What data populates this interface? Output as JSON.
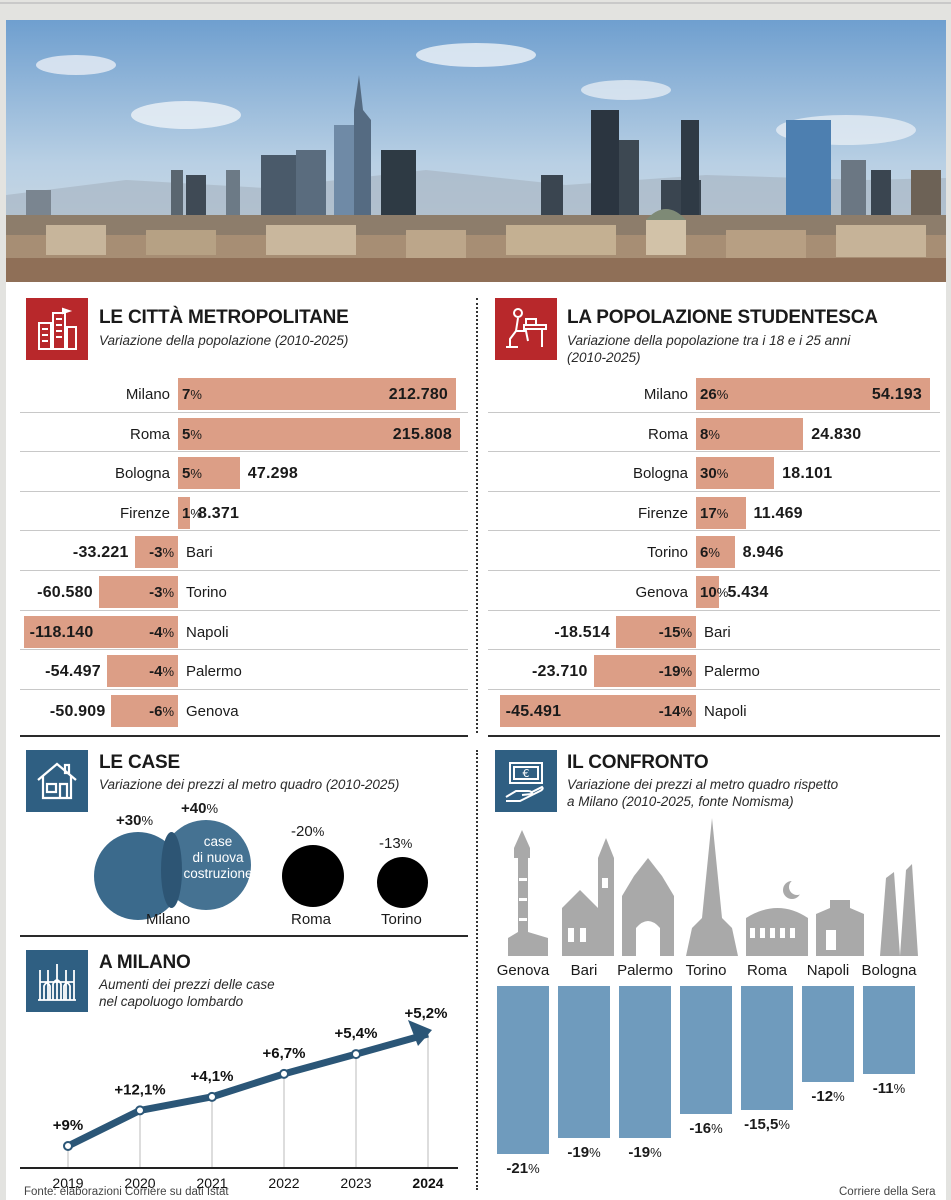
{
  "photo": {
    "alt_icon": "milan-skyline-photo"
  },
  "metro": {
    "title": "LE CITTÀ METROPOLITANE",
    "subtitle": "Variazione della popolazione (2010-2025)",
    "rows": [
      {
        "city": "Milano",
        "pct": "7",
        "value": "212.780"
      },
      {
        "city": "Roma",
        "pct": "5",
        "value": "215.808"
      },
      {
        "city": "Bologna",
        "pct": "5",
        "value": "47.298"
      },
      {
        "city": "Firenze",
        "pct": "1",
        "value": "8.371"
      },
      {
        "city": "Bari",
        "pct": "-3",
        "value": "-33.221"
      },
      {
        "city": "Torino",
        "pct": "-3",
        "value": "-60.580"
      },
      {
        "city": "Napoli",
        "pct": "-4",
        "value": "-118.140"
      },
      {
        "city": "Palermo",
        "pct": "-4",
        "value": "-54.497"
      },
      {
        "city": "Genova",
        "pct": "-6",
        "value": "-50.909"
      }
    ]
  },
  "students": {
    "title": "LA POPOLAZIONE STUDENTESCA",
    "subtitle_line1": "Variazione della popolazione tra i 18 e i 25 anni",
    "subtitle_line2": "(2010-2025)",
    "rows": [
      {
        "city": "Milano",
        "pct": "26",
        "value": "54.193"
      },
      {
        "city": "Roma",
        "pct": "8",
        "value": "24.830"
      },
      {
        "city": "Bologna",
        "pct": "30",
        "value": "18.101"
      },
      {
        "city": "Firenze",
        "pct": "17",
        "value": "11.469"
      },
      {
        "city": "Torino",
        "pct": "6",
        "value": "8.946"
      },
      {
        "city": "Genova",
        "pct": "10",
        "value": "5.434"
      },
      {
        "city": "Bari",
        "pct": "-15",
        "value": "-18.514"
      },
      {
        "city": "Palermo",
        "pct": "-19",
        "value": "-23.710"
      },
      {
        "city": "Napoli",
        "pct": "-14",
        "value": "-45.491"
      }
    ]
  },
  "case": {
    "title": "LE CASE",
    "subtitle": "Variazione dei prezzi al metro quadro (2010-2025)",
    "milano_existing": "+30",
    "milano_new": "+40",
    "new_label_1": "case",
    "new_label_2": "di nuova",
    "new_label_3": "costruzione",
    "milano_label": "Milano",
    "roma_pct": "-20",
    "roma_label": "Roma",
    "torino_pct": "-13",
    "torino_label": "Torino",
    "pct_sign": "%"
  },
  "milano": {
    "title": "A MILANO",
    "subtitle_line1": "Aumenti dei prezzi delle case",
    "subtitle_line2": "nel capoluogo lombardo"
  },
  "confronto": {
    "title": "IL CONFRONTO",
    "subtitle_line1": "Variazione dei prezzi al metro quadro rispetto",
    "subtitle_line2": "a Milano (2010-2025, fonte Nomisma)"
  },
  "footer": {
    "source": "Fonte: elaborazioni Corriere su dati Istat",
    "credit": "Corriere della Sera"
  },
  "chart_data": [
    {
      "type": "bar",
      "title": "LE CITTÀ METROPOLITANE",
      "categories": [
        "Milano",
        "Roma",
        "Bologna",
        "Firenze",
        "Bari",
        "Torino",
        "Napoli",
        "Palermo",
        "Genova"
      ],
      "series": [
        {
          "values": [
            212780,
            215808,
            47298,
            8371,
            -33221,
            -60580,
            -118140,
            -54497,
            -50909
          ]
        },
        {
          "values": [
            7,
            5,
            5,
            1,
            -3,
            -3,
            -4,
            -4,
            -6
          ]
        }
      ]
    },
    {
      "type": "bar",
      "title": "LA POPOLAZIONE STUDENTESCA",
      "categories": [
        "Milano",
        "Roma",
        "Bologna",
        "Firenze",
        "Torino",
        "Genova",
        "Bari",
        "Palermo",
        "Napoli"
      ],
      "series": [
        {
          "values": [
            54193,
            24830,
            18101,
            11469,
            8946,
            5434,
            -18514,
            -23710,
            -45491
          ]
        },
        {
          "values": [
            26,
            8,
            30,
            17,
            6,
            10,
            -15,
            -19,
            -14
          ]
        }
      ]
    },
    {
      "type": "line",
      "title": "A MILANO",
      "x": [
        "2019",
        "2020",
        "2021",
        "2022",
        "2023",
        "2024"
      ],
      "labels": [
        "+9%",
        "+12,1%",
        "+4,1%",
        "+6,7%",
        "+5,4%",
        "+5,2%"
      ],
      "values": [
        9,
        12.1,
        4.1,
        6.7,
        5.4,
        5.2
      ]
    },
    {
      "type": "bar",
      "title": "IL CONFRONTO",
      "categories": [
        "Genova",
        "Bari",
        "Palermo",
        "Torino",
        "Roma",
        "Napoli",
        "Bologna"
      ],
      "labels": [
        "-21%",
        "-19%",
        "-19%",
        "-16%",
        "-15,5%",
        "-12%",
        "-11%"
      ],
      "values": [
        -21,
        -19,
        -19,
        -16,
        -15.5,
        -12,
        -11
      ],
      "ylim": [
        -21,
        0
      ]
    }
  ]
}
